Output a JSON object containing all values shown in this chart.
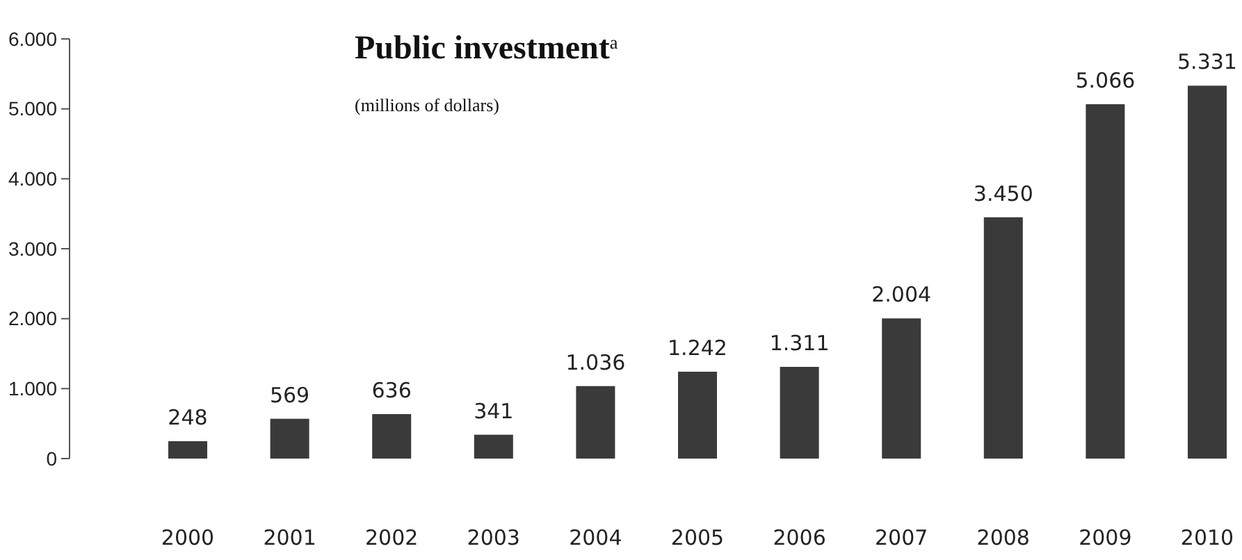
{
  "chart_data": {
    "type": "bar",
    "title": "Public investment$^{a}$",
    "subtitle": "(millions of dollars)",
    "categories": [
      "2000",
      "2001",
      "2002",
      "2003",
      "2004",
      "2005",
      "2006",
      "2007",
      "2008",
      "2009",
      "2010"
    ],
    "values": [
      248,
      569,
      636,
      341,
      1036,
      1242,
      1311,
      2004,
      3450,
      5066,
      5331
    ],
    "value_labels": [
      "248",
      "569",
      "636",
      "341",
      "1.036",
      "1.242",
      "1.311",
      "2.004",
      "3.450",
      "5.066",
      "5.331"
    ],
    "color": "#3a3a3a",
    "ylim": [
      0,
      6000
    ],
    "yticks": [
      0,
      {
        "value": 1000,
        "label": "1.000"
      },
      {
        "value": 2000,
        "label": "2.000"
      },
      {
        "value": 3000,
        "label": "3.000"
      },
      {
        "value": 4000,
        "label": "4.000"
      },
      {
        "value": 5000,
        "label": "5.000"
      },
      {
        "value": 6000,
        "label": "6.000"
      }
    ],
    "grid": false
  }
}
